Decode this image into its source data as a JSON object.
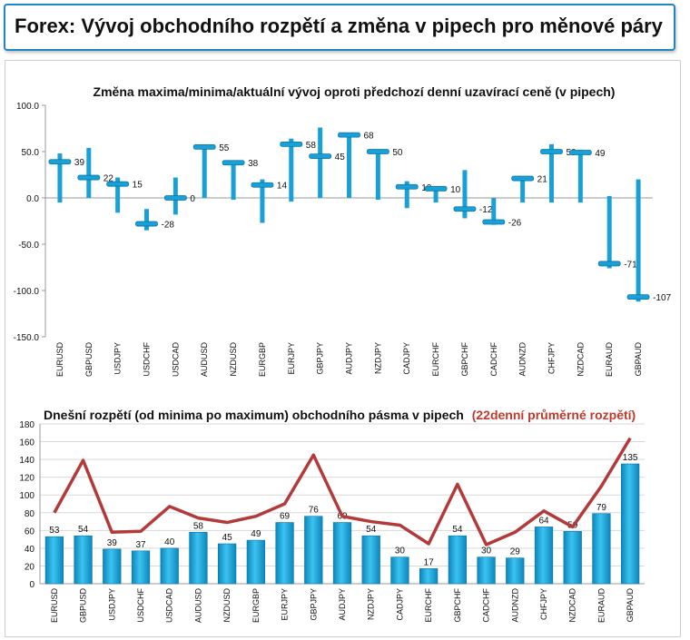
{
  "header": {
    "title": "Forex: Vývoj obchodního rozpětí a změna v pipech pro měnové páry"
  },
  "colors": {
    "bar": "#19a0d6",
    "bar_dark": "#0a77a8",
    "line": "#b33a3a",
    "header_border": "#1f86c6",
    "highlight": "#c0392b"
  },
  "chart_data": [
    {
      "type": "range",
      "title": "Změna maxima/minima/aktuální vývoj oproti předchozí denní uzavírací ceně (v pipech)",
      "ylim": [
        -150,
        100
      ],
      "yticks": [
        "100.0",
        "50.0",
        "0.0",
        "-50.0",
        "-100.0",
        "-150.0"
      ],
      "categories": [
        "EURUSD",
        "GBPUSD",
        "USDJPY",
        "USDCHF",
        "USDCAD",
        "AUDUSD",
        "NZDUSD",
        "EURGBP",
        "EURJPY",
        "GBPJPY",
        "AUDJPY",
        "NZDJPY",
        "CADJPY",
        "EURCHF",
        "GBPCHF",
        "CADCHF",
        "AUDNZD",
        "CHFJPY",
        "NZDCAD",
        "EURAUD",
        "GBPAUD"
      ],
      "series": [
        {
          "values": [
            39,
            22,
            15,
            -28,
            0,
            55,
            38,
            14,
            58,
            45,
            68,
            50,
            12,
            10,
            -12,
            -26,
            21,
            50,
            49,
            -71,
            -107
          ]
        }
      ],
      "high": [
        48,
        54,
        22,
        -12,
        22,
        57,
        40,
        20,
        64,
        76,
        70,
        52,
        18,
        12,
        30,
        0,
        22,
        58,
        52,
        2,
        20
      ],
      "low": [
        -5,
        0,
        -16,
        -35,
        -18,
        0,
        -2,
        -27,
        -4,
        0,
        0,
        -2,
        -11,
        -5,
        -22,
        -29,
        -5,
        -5,
        -5,
        -76,
        -112
      ]
    },
    {
      "type": "bar",
      "title": "Dnešní rozpětí (od minima po maximum) obchodního pásma v pipech",
      "title_highlight": "(22denní průměrné rozpětí)",
      "ylim": [
        0,
        180
      ],
      "yticks": [
        "180",
        "160",
        "140",
        "120",
        "100",
        "80",
        "60",
        "40",
        "20",
        "0"
      ],
      "categories": [
        "EURUSD",
        "GBPUSD",
        "USDJPY",
        "USDCHF",
        "USDCAD",
        "AUDUSD",
        "NZDUSD",
        "EURGBP",
        "EURJPY",
        "GBPJPY",
        "AUDJPY",
        "NZDJPY",
        "CADJPY",
        "EURCHF",
        "GBPCHF",
        "CADCHF",
        "AUDNZD",
        "CHFJPY",
        "NZDCAD",
        "EURAUD",
        "GBPAUD"
      ],
      "series": [
        {
          "values": [
            53,
            54,
            39,
            37,
            40,
            58,
            45,
            49,
            69,
            76,
            69,
            54,
            30,
            17,
            54,
            30,
            29,
            64,
            59,
            79,
            135
          ]
        },
        {
          "values": [
            80,
            139,
            58,
            59,
            87,
            74,
            69,
            76,
            90,
            145,
            76,
            70,
            66,
            45,
            112,
            44,
            58,
            82,
            64,
            110,
            164
          ]
        }
      ]
    }
  ]
}
